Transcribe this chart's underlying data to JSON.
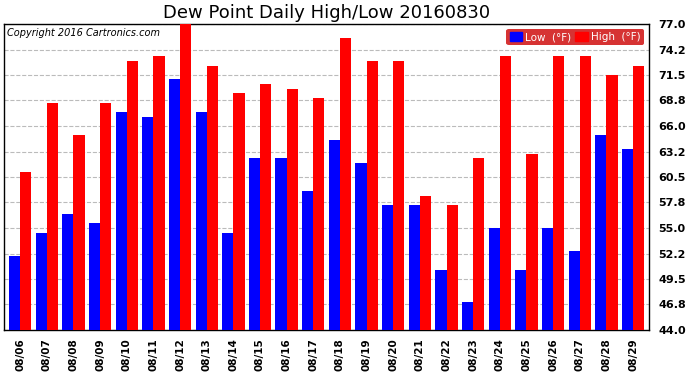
{
  "title": "Dew Point Daily High/Low 20160830",
  "copyright": "Copyright 2016 Cartronics.com",
  "dates": [
    "08/06",
    "08/07",
    "08/08",
    "08/09",
    "08/10",
    "08/11",
    "08/12",
    "08/13",
    "08/14",
    "08/15",
    "08/16",
    "08/17",
    "08/18",
    "08/19",
    "08/20",
    "08/21",
    "08/22",
    "08/23",
    "08/24",
    "08/25",
    "08/26",
    "08/27",
    "08/28",
    "08/29"
  ],
  "low_values": [
    52.0,
    54.5,
    56.5,
    55.5,
    67.5,
    67.0,
    71.0,
    67.5,
    54.5,
    62.5,
    62.5,
    59.0,
    64.5,
    62.0,
    57.5,
    57.5,
    50.5,
    47.0,
    55.0,
    50.5,
    55.0,
    52.5,
    65.0,
    63.5
  ],
  "high_values": [
    61.0,
    68.5,
    65.0,
    68.5,
    73.0,
    73.5,
    77.0,
    72.5,
    69.5,
    70.5,
    70.0,
    69.0,
    75.5,
    73.0,
    73.0,
    58.5,
    57.5,
    62.5,
    73.5,
    63.0,
    73.5,
    73.5,
    71.5,
    72.5
  ],
  "ylim": [
    44.0,
    77.0
  ],
  "yticks": [
    44.0,
    46.8,
    49.5,
    52.2,
    55.0,
    57.8,
    60.5,
    63.2,
    66.0,
    68.8,
    71.5,
    74.2,
    77.0
  ],
  "low_color": "#0000ff",
  "high_color": "#ff0000",
  "bg_color": "#ffffff",
  "grid_color": "#bbbbbb",
  "title_fontsize": 13,
  "legend_low_label": "Low  (°F)",
  "legend_high_label": "High  (°F)"
}
